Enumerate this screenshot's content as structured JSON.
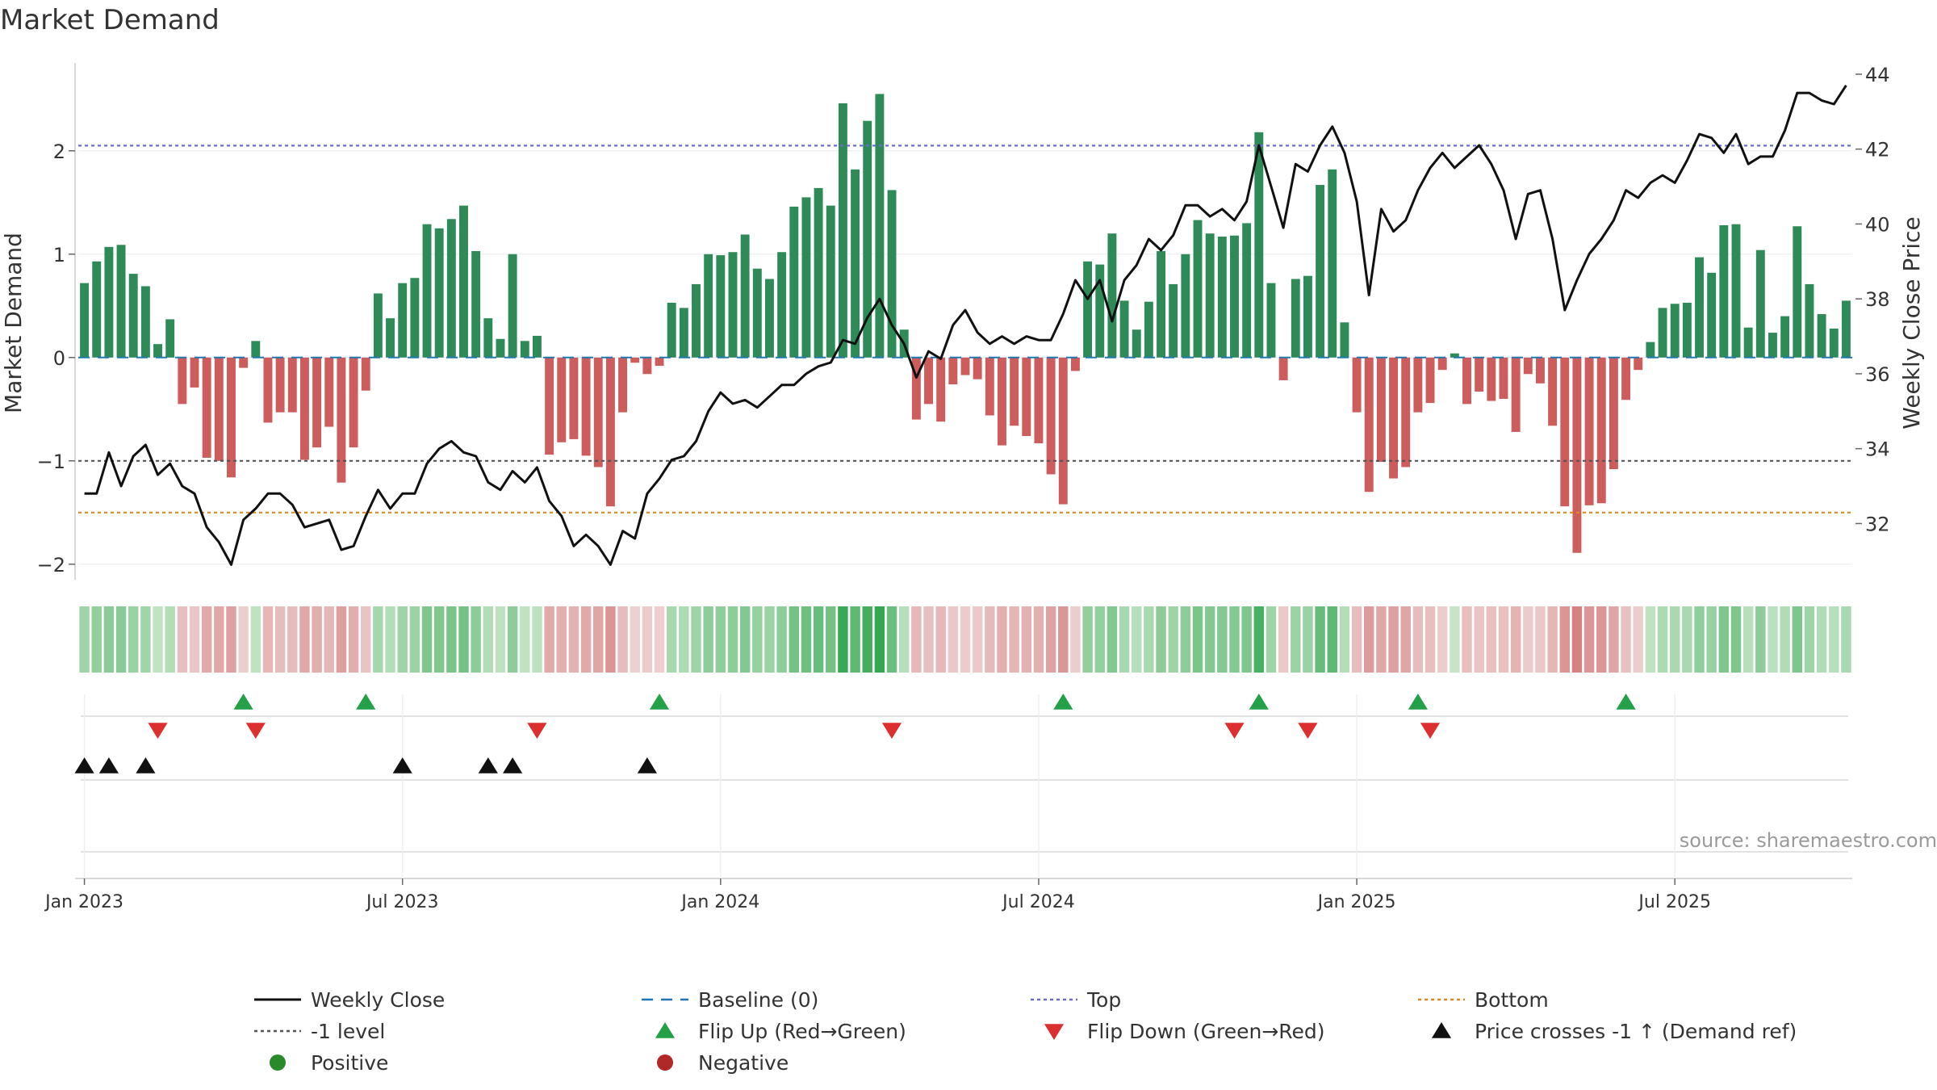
{
  "chart_data": {
    "type": "bar",
    "title": "Market Demand",
    "ylabel_left": "Market Demand",
    "ylabel_right": "Weekly Close Price",
    "source": "source: sharemaestro.com",
    "ylim_left": [
      -2.15,
      2.85
    ],
    "ylim_right": [
      30.5,
      44.3
    ],
    "yticks_left": [
      {
        "v": 2,
        "label": "2"
      },
      {
        "v": 1,
        "label": "1"
      },
      {
        "v": 0,
        "label": "0"
      },
      {
        "v": -1,
        "label": "−1"
      },
      {
        "v": -2,
        "label": "−2"
      }
    ],
    "yticks_right": [
      {
        "v": 44,
        "label": "44"
      },
      {
        "v": 42,
        "label": "42"
      },
      {
        "v": 40,
        "label": "40"
      },
      {
        "v": 38,
        "label": "38"
      },
      {
        "v": 36,
        "label": "36"
      },
      {
        "v": 34,
        "label": "34"
      },
      {
        "v": 32,
        "label": "32"
      }
    ],
    "x_ticks": [
      {
        "week": 1,
        "label": "Jan 2023"
      },
      {
        "week": 27,
        "label": "Jul 2023"
      },
      {
        "week": 53,
        "label": "Jan 2024"
      },
      {
        "week": 79,
        "label": "Jul 2024"
      },
      {
        "week": 105,
        "label": "Jan 2025"
      },
      {
        "week": 131,
        "label": "Jul 2025"
      }
    ],
    "reference_lines": {
      "top": 2.05,
      "bottom": -1.5,
      "minus_one": -1.0,
      "baseline": 0
    },
    "demand": [
      0.72,
      0.93,
      1.07,
      1.09,
      0.81,
      0.69,
      0.13,
      0.37,
      -0.45,
      -0.29,
      -0.97,
      -1.0,
      -1.16,
      -0.1,
      0.16,
      -0.63,
      -0.53,
      -0.53,
      -0.99,
      -0.87,
      -0.67,
      -1.21,
      -0.87,
      -0.32,
      0.62,
      0.38,
      0.72,
      0.77,
      1.29,
      1.25,
      1.34,
      1.47,
      1.03,
      0.38,
      0.18,
      1.0,
      0.16,
      0.21,
      -0.94,
      -0.82,
      -0.79,
      -0.95,
      -1.06,
      -1.44,
      -0.53,
      -0.05,
      -0.16,
      -0.08,
      0.53,
      0.48,
      0.71,
      1.0,
      0.99,
      1.02,
      1.19,
      0.86,
      0.76,
      1.02,
      1.46,
      1.55,
      1.64,
      1.47,
      2.46,
      1.82,
      2.29,
      2.55,
      1.62,
      0.27,
      -0.6,
      -0.45,
      -0.62,
      -0.26,
      -0.17,
      -0.21,
      -0.56,
      -0.85,
      -0.66,
      -0.76,
      -0.83,
      -1.13,
      -1.42,
      -0.13,
      0.93,
      0.9,
      1.2,
      0.55,
      0.27,
      0.54,
      1.03,
      0.71,
      1.0,
      1.33,
      1.2,
      1.17,
      1.18,
      1.3,
      2.18,
      0.72,
      -0.22,
      0.76,
      0.79,
      1.67,
      1.82,
      0.34,
      -0.53,
      -1.3,
      -1.01,
      -1.17,
      -1.06,
      -0.53,
      -0.44,
      -0.12,
      0.04,
      -0.45,
      -0.33,
      -0.42,
      -0.4,
      -0.72,
      -0.16,
      -0.25,
      -0.66,
      -1.44,
      -1.89,
      -1.43,
      -1.41,
      -1.08,
      -0.41,
      -0.12,
      0.15,
      0.48,
      0.52,
      0.53,
      0.97,
      0.82,
      1.28,
      1.29,
      0.29,
      1.04,
      0.24,
      0.4,
      1.27,
      0.71,
      0.42,
      0.28,
      0.55
    ],
    "weekly_close": [
      32.8,
      32.8,
      33.9,
      33.0,
      33.8,
      34.1,
      33.3,
      33.6,
      33.0,
      32.8,
      31.9,
      31.5,
      30.9,
      32.1,
      32.4,
      32.8,
      32.8,
      32.5,
      31.9,
      32.0,
      32.1,
      31.3,
      31.4,
      32.2,
      32.9,
      32.4,
      32.8,
      32.8,
      33.6,
      34.0,
      34.2,
      33.9,
      33.8,
      33.1,
      32.9,
      33.4,
      33.1,
      33.5,
      32.6,
      32.2,
      31.4,
      31.7,
      31.4,
      30.9,
      31.8,
      31.6,
      32.8,
      33.2,
      33.7,
      33.8,
      34.2,
      35.0,
      35.5,
      35.2,
      35.3,
      35.1,
      35.4,
      35.7,
      35.7,
      36.0,
      36.2,
      36.3,
      36.9,
      36.8,
      37.5,
      38.0,
      37.3,
      36.8,
      35.9,
      36.6,
      36.4,
      37.3,
      37.7,
      37.1,
      36.8,
      37.0,
      36.8,
      37.0,
      36.9,
      36.9,
      37.6,
      38.5,
      38.0,
      38.5,
      37.4,
      38.5,
      38.9,
      39.6,
      39.3,
      39.7,
      40.5,
      40.5,
      40.2,
      40.4,
      40.1,
      40.6,
      42.1,
      41.0,
      39.9,
      41.6,
      41.4,
      42.1,
      42.6,
      41.9,
      40.6,
      38.1,
      40.4,
      39.8,
      40.1,
      40.9,
      41.5,
      41.9,
      41.5,
      41.8,
      42.1,
      41.6,
      40.9,
      39.6,
      40.8,
      40.9,
      39.6,
      37.7,
      38.5,
      39.2,
      39.6,
      40.1,
      40.9,
      40.7,
      41.1,
      41.3,
      41.1,
      41.7,
      42.4,
      42.3,
      41.9,
      42.4,
      41.6,
      41.8,
      41.8,
      42.5,
      43.5,
      43.5,
      43.3,
      43.2,
      43.7
    ],
    "flip_up_weeks": [
      14,
      24,
      48,
      81,
      97,
      110,
      127
    ],
    "flip_down_weeks": [
      7,
      15,
      38,
      67,
      95,
      101,
      111
    ],
    "price_cross_weeks": [
      1,
      3,
      6,
      27,
      34,
      36,
      47
    ],
    "legend": [
      {
        "key": "weekly-close",
        "label": "Weekly Close",
        "symbol": "line",
        "color": "#111111"
      },
      {
        "key": "baseline",
        "label": "Baseline (0)",
        "symbol": "dash",
        "color": "#1f77b4"
      },
      {
        "key": "top",
        "label": "Top",
        "symbol": "dot",
        "color": "#6b6bd6"
      },
      {
        "key": "bottom",
        "label": "Bottom",
        "symbol": "dot",
        "color": "#e08a1e"
      },
      {
        "key": "minus-one",
        "label": "-1 level",
        "symbol": "dot",
        "color": "#555555"
      },
      {
        "key": "flip-up",
        "label": "Flip Up (Red→Green)",
        "symbol": "up",
        "color": "#24a148"
      },
      {
        "key": "flip-down",
        "label": "Flip Down (Green→Red)",
        "symbol": "down",
        "color": "#dc3030"
      },
      {
        "key": "price-cross",
        "label": "Price crosses -1 ↑ (Demand ref)",
        "symbol": "up",
        "color": "#111111"
      },
      {
        "key": "positive",
        "label": "Positive",
        "symbol": "circle",
        "color": "#2a8a2a"
      },
      {
        "key": "negative",
        "label": "Negative",
        "symbol": "circle",
        "color": "#b02828"
      }
    ]
  },
  "colors": {
    "positive_bar": "#2e8b57",
    "negative_bar": "#cd5c5c",
    "flip_up": "#24a148",
    "flip_down": "#dc3030",
    "price_cross": "#111111",
    "close_line": "#111111",
    "baseline": "#1f77b4",
    "top": "#6b6bd6",
    "bottom": "#e08a1e",
    "minus_one": "#555555",
    "axis": "#cccccc",
    "text": "#333333"
  }
}
